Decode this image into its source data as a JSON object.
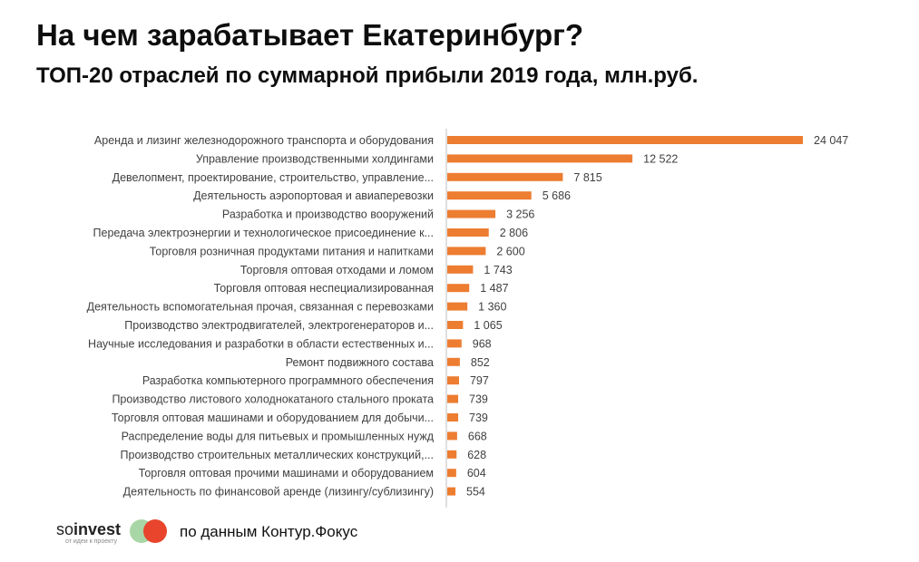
{
  "header": {
    "title": "На чем зарабатывает Екатеринбург?",
    "subtitle": "ТОП-20 отраслей по суммарной прибыли 2019 года, млн.руб."
  },
  "footer": {
    "logo_prefix": "so",
    "logo_name": "invest",
    "logo_tagline": "от идеи к проекту",
    "source": "по данным Контур.Фокус"
  },
  "colors": {
    "bar": "#ed7d31",
    "axis": "#bfbfbf",
    "label": "#404040",
    "logo_green": "#a9d6a6",
    "logo_red": "#e8452c"
  },
  "chart_data": {
    "type": "bar",
    "orientation": "horizontal",
    "title": "ТОП-20 отраслей по суммарной прибыли 2019 года, млн.руб.",
    "xlabel": "",
    "ylabel": "",
    "xlim": [
      0,
      24047
    ],
    "grid": false,
    "categories": [
      "Аренда и лизинг железнодорожного транспорта и оборудования",
      "Управление производственными холдингами",
      "Девелопмент, проектирование, строительство, управление...",
      "Деятельность аэропортовая и авиаперевозки",
      "Разработка и производство вооружений",
      "Передача электроэнергии и технологическое присоединение к...",
      "Торговля розничная продуктами питания и напитками",
      "Торговля оптовая отходами и ломом",
      "Торговля оптовая неспециализированная",
      "Деятельность вспомогательная прочая, связанная с перевозками",
      "Производство электродвигателей, электрогенераторов и...",
      "Научные исследования и разработки в области естественных и...",
      "Ремонт подвижного состава",
      "Разработка компьютерного программного обеспечения",
      "Производство листового холоднокатаного стального проката",
      "Торговля оптовая машинами и оборудованием для добычи...",
      "Распределение воды для питьевых и промышленных нужд",
      "Производство строительных металлических конструкций,...",
      "Торговля оптовая прочими машинами и оборудованием",
      "Деятельность по финансовой аренде (лизингу/сублизингу)"
    ],
    "values": [
      24047,
      12522,
      7815,
      5686,
      3256,
      2806,
      2600,
      1743,
      1487,
      1360,
      1065,
      968,
      852,
      797,
      739,
      739,
      668,
      628,
      604,
      554
    ],
    "value_labels": [
      "24 047",
      "12 522",
      "7 815",
      "5 686",
      "3 256",
      "2 806",
      "2 600",
      "1 743",
      "1 487",
      "1 360",
      "1 065",
      "968",
      "852",
      "797",
      "739",
      "739",
      "668",
      "628",
      "604",
      "554"
    ]
  }
}
